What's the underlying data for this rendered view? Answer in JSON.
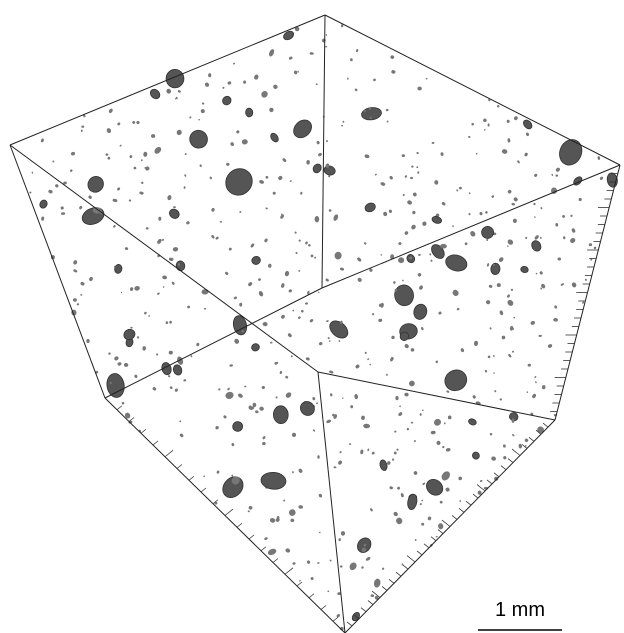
{
  "scale_bar": {
    "label": "1 mm"
  }
}
